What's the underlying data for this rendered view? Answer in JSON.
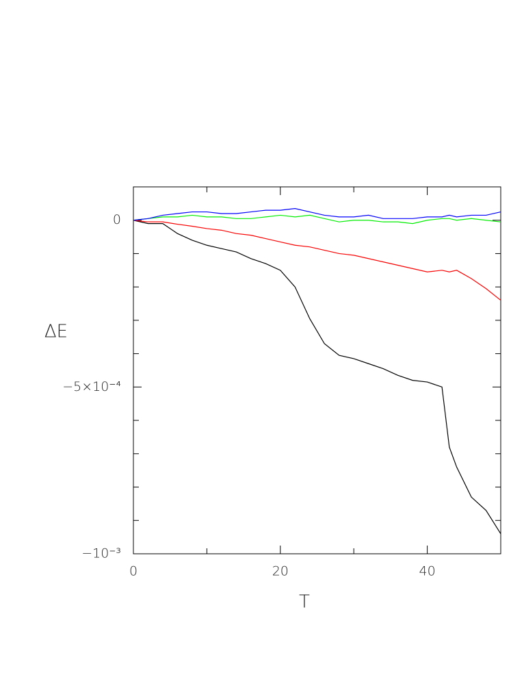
{
  "chart_data": {
    "type": "line",
    "x_label": "T",
    "y_label": "ΔE",
    "x": [
      0,
      2,
      4,
      6,
      8,
      10,
      12,
      14,
      16,
      18,
      20,
      22,
      24,
      26,
      28,
      30,
      32,
      34,
      36,
      38,
      40,
      42,
      43,
      44,
      46,
      48,
      50
    ],
    "series": [
      {
        "color": "#000000",
        "values": [
          0,
          -1e-05,
          -1e-05,
          -4e-05,
          -6e-05,
          -7.5e-05,
          -8.5e-05,
          -9.5e-05,
          -0.000115,
          -0.00013,
          -0.00015,
          -0.0002,
          -0.000295,
          -0.00037,
          -0.000405,
          -0.000415,
          -0.00043,
          -0.000445,
          -0.000465,
          -0.00048,
          -0.000485,
          -0.0005,
          -0.00068,
          -0.00074,
          -0.00083,
          -0.00087,
          -0.00094
        ]
      },
      {
        "color": "#ff0000",
        "values": [
          0,
          -5e-06,
          -5e-06,
          -1.2e-05,
          -1.8e-05,
          -2.5e-05,
          -3e-05,
          -4e-05,
          -4.5e-05,
          -5.5e-05,
          -6.5e-05,
          -7.5e-05,
          -8e-05,
          -9e-05,
          -0.0001,
          -0.000105,
          -0.000115,
          -0.000125,
          -0.000135,
          -0.000145,
          -0.000155,
          -0.00015,
          -0.000155,
          -0.00015,
          -0.000175,
          -0.000205,
          -0.00024
        ]
      },
      {
        "color": "#00ee00",
        "values": [
          0,
          5e-06,
          1e-05,
          1e-05,
          1.5e-05,
          1e-05,
          1e-05,
          5e-06,
          5e-06,
          1e-05,
          1.5e-05,
          1e-05,
          1.5e-05,
          5e-06,
          -5e-06,
          0,
          0,
          -5e-06,
          -5e-06,
          -1e-05,
          0,
          5e-06,
          5e-06,
          0,
          5e-06,
          0,
          -5e-06
        ]
      },
      {
        "color": "#0000ff",
        "values": [
          0,
          5e-06,
          1.5e-05,
          2e-05,
          2.5e-05,
          2.5e-05,
          2e-05,
          2e-05,
          2.5e-05,
          3e-05,
          3e-05,
          3.5e-05,
          2.5e-05,
          1.5e-05,
          1e-05,
          1e-05,
          1.5e-05,
          5e-06,
          5e-06,
          5e-06,
          1e-05,
          1e-05,
          1.5e-05,
          1e-05,
          1.5e-05,
          1.5e-05,
          2.5e-05
        ]
      }
    ],
    "xlim": [
      0,
      50
    ],
    "ylim": [
      -0.001,
      0.0001
    ],
    "xticks": [
      0,
      20,
      40
    ],
    "xticks_minor": [
      10,
      30
    ],
    "yticks": [
      0,
      {
        "value": -0.0005,
        "label": "−5×10⁻⁴"
      },
      {
        "value": -0.001,
        "label": "−10⁻³"
      }
    ],
    "yticks_minor": [
      -0.0001,
      -0.0002,
      -0.0003,
      -0.0004,
      -0.0006,
      -0.0007,
      -0.0008,
      -0.0009
    ]
  }
}
